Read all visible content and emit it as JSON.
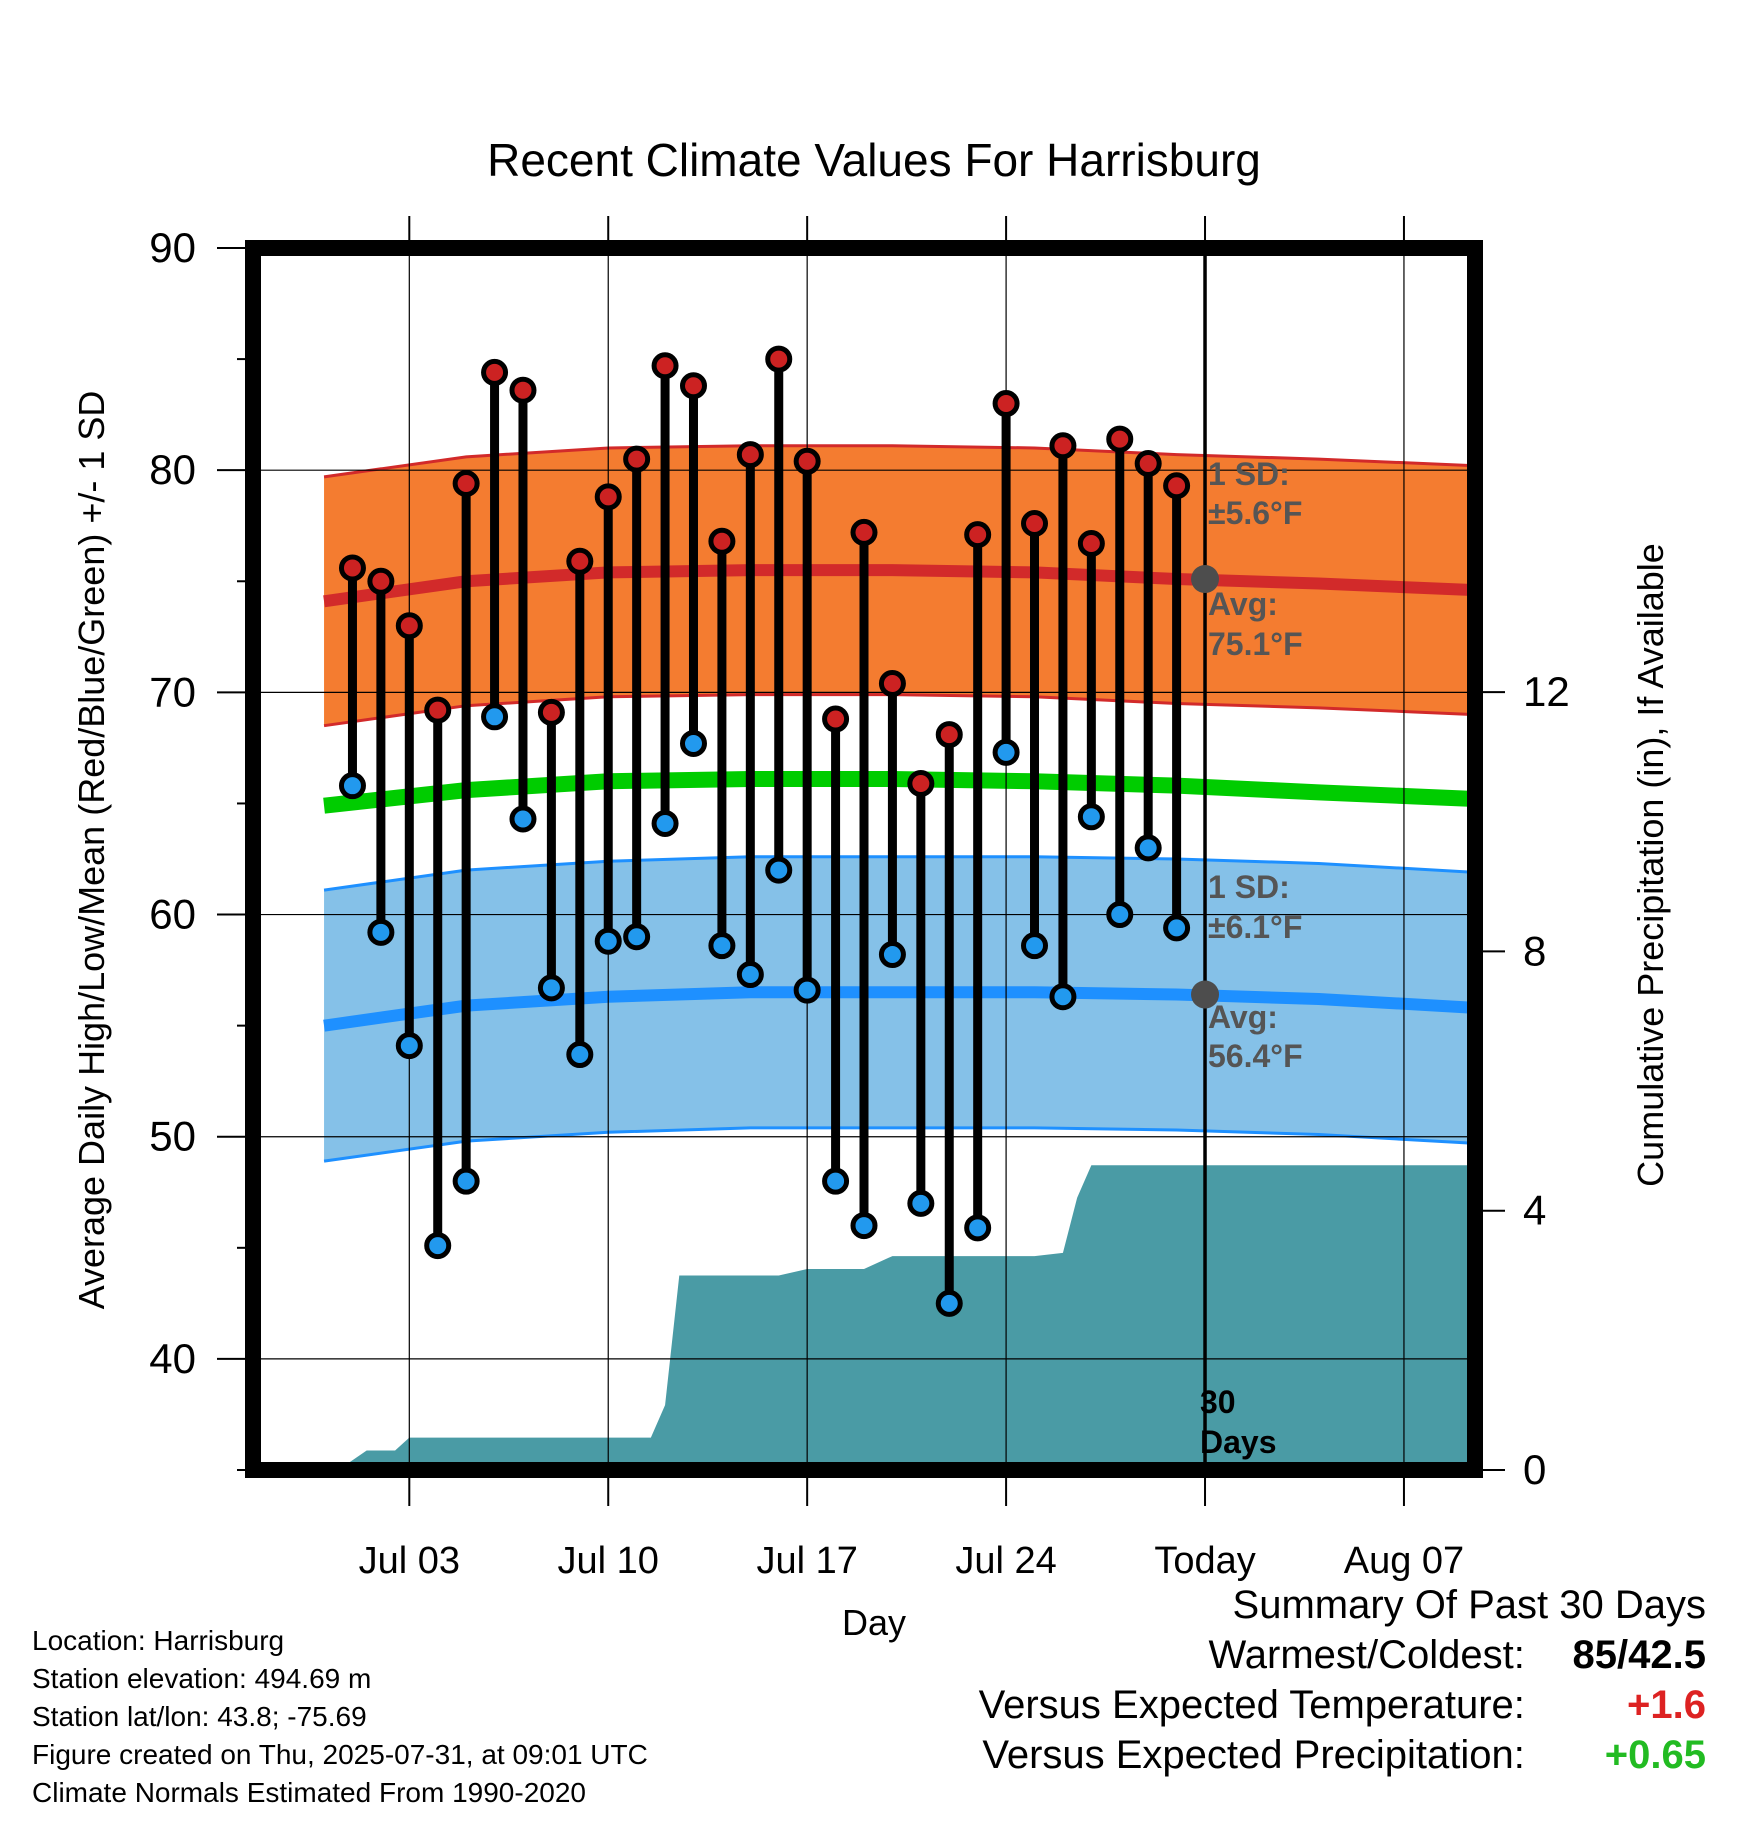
{
  "chart_data": {
    "type": "line",
    "title": "Recent Climate Values For Harrisburg",
    "xlabel": "Day",
    "ylabel": "Average Daily High/Low/Mean (Red/Blue/Green) +/- 1 SD",
    "y2label": "Cumulative Precipitation (in), If Available",
    "ylim": [
      35,
      90
    ],
    "y2lim": [
      0,
      18.85
    ],
    "yticks": [
      40,
      50,
      60,
      70,
      80,
      90
    ],
    "y2ticks": [
      0,
      4,
      8,
      12
    ],
    "xlim": [
      -2.5,
      40.5
    ],
    "x_ticks": [
      {
        "x": 3,
        "label": "Jul 03"
      },
      {
        "x": 10,
        "label": "Jul 10"
      },
      {
        "x": 17,
        "label": "Jul 17"
      },
      {
        "x": 24,
        "label": "Jul 24"
      },
      {
        "x": 31,
        "label": "Today"
      },
      {
        "x": 38,
        "label": "Aug 07"
      }
    ],
    "grid": true,
    "normals": {
      "x": [
        0,
        5,
        10,
        15,
        20,
        25,
        30,
        35,
        40.5
      ],
      "high_avg": [
        74.1,
        75.0,
        75.4,
        75.5,
        75.5,
        75.4,
        75.1,
        74.9,
        74.6
      ],
      "high_sd": 5.6,
      "mean_avg": [
        64.9,
        65.6,
        66.0,
        66.1,
        66.1,
        66.0,
        65.8,
        65.5,
        65.2
      ],
      "low_avg": [
        55.0,
        55.9,
        56.3,
        56.5,
        56.5,
        56.5,
        56.4,
        56.2,
        55.8
      ],
      "low_sd": 6.1
    },
    "series": [
      {
        "name": "High",
        "color": "#cc2222",
        "x": [
          1,
          2,
          3,
          4,
          5,
          6,
          7,
          8,
          9,
          10,
          11,
          12,
          13,
          14,
          15,
          16,
          17,
          18,
          19,
          20,
          21,
          22,
          23,
          24,
          25,
          26,
          27,
          28,
          29,
          30
        ],
        "values": [
          75.6,
          75.0,
          73.0,
          69.2,
          79.4,
          84.4,
          83.6,
          69.1,
          75.9,
          78.8,
          80.5,
          84.7,
          83.8,
          76.8,
          80.7,
          85.0,
          80.4,
          68.8,
          77.2,
          70.4,
          65.9,
          68.1,
          77.1,
          83.0,
          77.6,
          81.1,
          76.7,
          81.4,
          80.3,
          79.3
        ]
      },
      {
        "name": "Low",
        "color": "#2299ee",
        "x": [
          1,
          2,
          3,
          4,
          5,
          6,
          7,
          8,
          9,
          10,
          11,
          12,
          13,
          14,
          15,
          16,
          17,
          18,
          19,
          20,
          21,
          22,
          23,
          24,
          25,
          26,
          27,
          28,
          29,
          30
        ],
        "values": [
          65.8,
          59.2,
          54.1,
          45.1,
          48.0,
          68.9,
          64.3,
          56.7,
          53.7,
          58.8,
          59.0,
          64.1,
          67.7,
          58.6,
          57.3,
          62.0,
          56.6,
          48.0,
          46.0,
          58.2,
          47.0,
          42.5,
          45.9,
          67.3,
          58.6,
          56.3,
          64.4,
          60.0,
          63.0,
          59.4
        ]
      },
      {
        "name": "Cumulative Precipitation",
        "color": "#4a9ba5",
        "x": [
          -2.5,
          0.5,
          1.5,
          2.5,
          3,
          3.5,
          10,
          11.5,
          12,
          12.5,
          14,
          16,
          17,
          18,
          19,
          20,
          21,
          22,
          23,
          24,
          25,
          26,
          26.5,
          27,
          40.5
        ],
        "values": [
          0.0,
          0.0,
          0.3,
          0.3,
          0.5,
          0.5,
          0.5,
          0.5,
          1.0,
          3.0,
          3.0,
          3.0,
          3.1,
          3.1,
          3.1,
          3.3,
          3.3,
          3.3,
          3.3,
          3.3,
          3.3,
          3.35,
          4.2,
          4.7,
          4.7
        ]
      }
    ],
    "today": {
      "x": 31,
      "label": "Today",
      "days_label": "30\nDays",
      "high_avg": 75.1,
      "low_avg": 56.4
    },
    "annotations": {
      "high_sd_label": "1 SD:",
      "high_sd_value": "±5.6°F",
      "high_avg_label": "Avg:",
      "high_avg_value": "75.1°F",
      "low_sd_label": "1 SD:",
      "low_sd_value": "±6.1°F",
      "low_avg_label": "Avg:",
      "low_avg_value": "56.4°F",
      "days_line1": "30",
      "days_line2": "Days"
    },
    "colors": {
      "high_band": "#f47c30",
      "high_line": "#d22a2a",
      "mean_line": "#00cc00",
      "low_band": "#85c1e8",
      "low_line": "#1e90ff",
      "precip": "#4a9ba5",
      "marker_high": "#cc2222",
      "marker_low": "#2299ee"
    }
  },
  "footer": {
    "location": "Location: Harrisburg",
    "elevation": "Station elevation: 494.69 m",
    "latlon": "Station lat/lon: 43.8; -75.69",
    "created": "Figure created on Thu, 2025-07-31, at 09:01 UTC",
    "normals": "Climate Normals Estimated From 1990-2020"
  },
  "summary": {
    "heading": "Summary Of Past 30 Days",
    "warmest_coldest_label": "Warmest/Coldest:",
    "warmest_coldest_value": "85/42.5",
    "temp_label": "Versus Expected Temperature:",
    "temp_value": "+1.6",
    "temp_color": "#dd2222",
    "precip_label": "Versus Expected Precipitation:",
    "precip_value": "+0.65",
    "precip_color": "#22bb22"
  }
}
